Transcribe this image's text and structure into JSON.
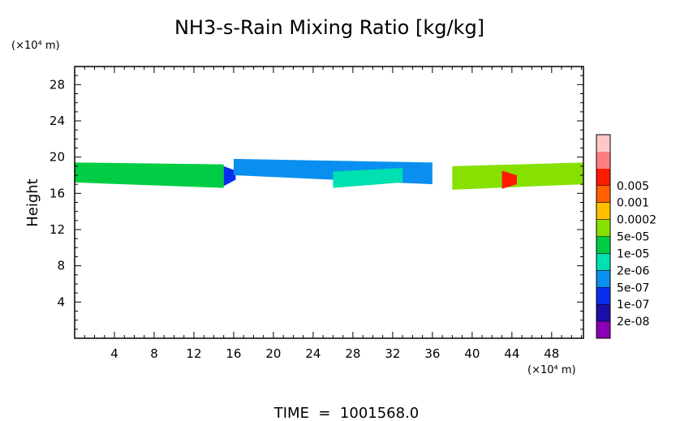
{
  "chart_data": {
    "type": "heatmap",
    "title": "NH3-s-Rain Mixing Ratio [kg/kg]",
    "ylabel": "Height",
    "y_unit_label": "(×10⁴ m)",
    "x_unit_label": "(×10⁴ m)",
    "footer": "TIME  =  1001568.0",
    "xlim": [
      0,
      51.2
    ],
    "ylim": [
      0,
      30
    ],
    "x_ticks": [
      4,
      8,
      12,
      16,
      20,
      24,
      28,
      32,
      36,
      40,
      44,
      48
    ],
    "x_tick_labels": [
      "4",
      "8",
      "12",
      "16",
      "20",
      "24",
      "28",
      "32",
      "36",
      "40",
      "44",
      "48"
    ],
    "y_ticks": [
      4,
      8,
      12,
      16,
      20,
      24,
      28
    ],
    "y_tick_labels": [
      "4",
      "8",
      "12",
      "16",
      "20",
      "24",
      "28"
    ],
    "colorbar": {
      "levels": [
        "2e-08",
        "1e-07",
        "5e-07",
        "2e-06",
        "1e-05",
        "5e-05",
        "0.0002",
        "0.001",
        "0.005"
      ],
      "colors": [
        "#8b00b4",
        "#1c0fa8",
        "#0a2ef0",
        "#0a8ff0",
        "#00e0b0",
        "#00cc44",
        "#88e000",
        "#ffc000",
        "#ff6000",
        "#ff1a00",
        "#ff7f7f",
        "#ffc8c8"
      ]
    },
    "regions": [
      {
        "x": [
          0,
          15
        ],
        "ybot": [
          17.2,
          16.6
        ],
        "ytop": [
          19.4,
          19.2
        ],
        "level": 5
      },
      {
        "x": [
          15,
          16.2
        ],
        "ybot": [
          16.8,
          17.5
        ],
        "ytop": [
          19,
          18.5
        ],
        "level": 2
      },
      {
        "x": [
          16,
          36
        ],
        "ybot": [
          18.0,
          17.0
        ],
        "ytop": [
          19.8,
          19.4
        ],
        "level": 3
      },
      {
        "x": [
          26,
          33
        ],
        "ybot": [
          16.6,
          17.2
        ],
        "ytop": [
          18.4,
          18.8
        ],
        "level": 4
      },
      {
        "x": [
          38,
          51.2
        ],
        "ybot": [
          16.4,
          17.0
        ],
        "ytop": [
          19.0,
          19.4
        ],
        "level": 6
      },
      {
        "x": [
          43,
          44.5
        ],
        "ybot": [
          16.5,
          17
        ],
        "ytop": [
          18.5,
          18.0
        ],
        "level": 9
      }
    ]
  }
}
